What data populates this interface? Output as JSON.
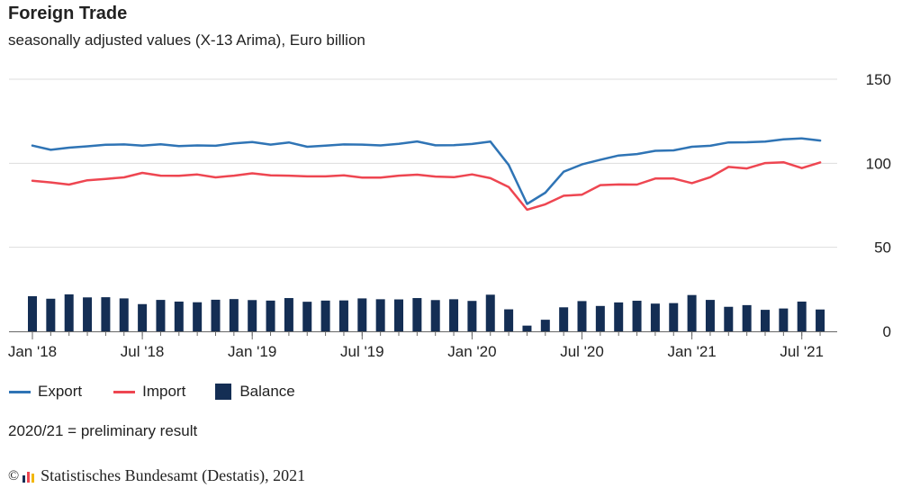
{
  "title": "Foreign Trade",
  "subtitle": "seasonally adjusted values (X-13 Arima), Euro billion",
  "note": "2020/21 = preliminary result",
  "footer": {
    "copyright_symbol": "©",
    "source": "Statistisches Bundesamt (Destatis), 2021"
  },
  "colors": {
    "export": "#2f74b5",
    "import": "#ee4651",
    "balance": "#142e54",
    "grid": "#dddddd",
    "axis": "#666666"
  },
  "chart_data": {
    "type": "line",
    "ylim": [
      0,
      150
    ],
    "yticks": [
      0,
      50,
      100,
      150
    ],
    "grid": true,
    "legend_position": "bottom",
    "xtick_labels": [
      "Jan '18",
      "Jul '18",
      "Jan '19",
      "Jul '19",
      "Jan '20",
      "Jul '20",
      "Jan '21",
      "Jul '21"
    ],
    "x": [
      "2018-01",
      "2018-02",
      "2018-03",
      "2018-04",
      "2018-05",
      "2018-06",
      "2018-07",
      "2018-08",
      "2018-09",
      "2018-10",
      "2018-11",
      "2018-12",
      "2019-01",
      "2019-02",
      "2019-03",
      "2019-04",
      "2019-05",
      "2019-06",
      "2019-07",
      "2019-08",
      "2019-09",
      "2019-10",
      "2019-11",
      "2019-12",
      "2020-01",
      "2020-02",
      "2020-03",
      "2020-04",
      "2020-05",
      "2020-06",
      "2020-07",
      "2020-08",
      "2020-09",
      "2020-10",
      "2020-11",
      "2020-12",
      "2021-01",
      "2021-02",
      "2021-03",
      "2021-04",
      "2021-05",
      "2021-06",
      "2021-07",
      "2021-08"
    ],
    "series": [
      {
        "name": "Export",
        "type": "line",
        "values": [
          110.5,
          108.0,
          109.3,
          110.1,
          111.0,
          111.2,
          110.5,
          111.3,
          110.2,
          110.6,
          110.4,
          111.8,
          112.6,
          111.1,
          112.4,
          109.8,
          110.5,
          111.2,
          111.1,
          110.6,
          111.6,
          113.0,
          110.7,
          110.8,
          111.5,
          112.9,
          99.0,
          75.8,
          82.5,
          95.0,
          99.3,
          102.1,
          104.6,
          105.5,
          107.4,
          107.7,
          109.8,
          110.4,
          112.4,
          112.5,
          112.9,
          114.2,
          114.8,
          113.5
        ]
      },
      {
        "name": "Import",
        "type": "line",
        "values": [
          89.6,
          88.6,
          87.3,
          89.9,
          90.7,
          91.6,
          94.3,
          92.6,
          92.5,
          93.3,
          91.6,
          92.6,
          94.0,
          92.8,
          92.6,
          92.2,
          92.2,
          92.8,
          91.5,
          91.5,
          92.6,
          93.2,
          92.1,
          91.7,
          93.4,
          91.1,
          85.9,
          72.4,
          75.6,
          80.7,
          81.3,
          87.0,
          87.4,
          87.3,
          90.9,
          90.9,
          88.2,
          91.7,
          97.8,
          96.9,
          100.1,
          100.6,
          97.1,
          100.5
        ]
      },
      {
        "name": "Balance",
        "type": "bar",
        "values": [
          20.9,
          19.4,
          22.0,
          20.2,
          20.3,
          19.6,
          16.2,
          18.7,
          17.7,
          17.3,
          18.8,
          19.2,
          18.6,
          18.3,
          19.8,
          17.6,
          18.3,
          18.4,
          19.6,
          19.1,
          19.0,
          19.8,
          18.6,
          19.1,
          18.1,
          21.8,
          13.1,
          3.4,
          6.9,
          14.3,
          18.0,
          15.1,
          17.2,
          18.2,
          16.5,
          16.8,
          21.6,
          18.7,
          14.6,
          15.6,
          12.8,
          13.6,
          17.7,
          13.0
        ]
      }
    ]
  }
}
